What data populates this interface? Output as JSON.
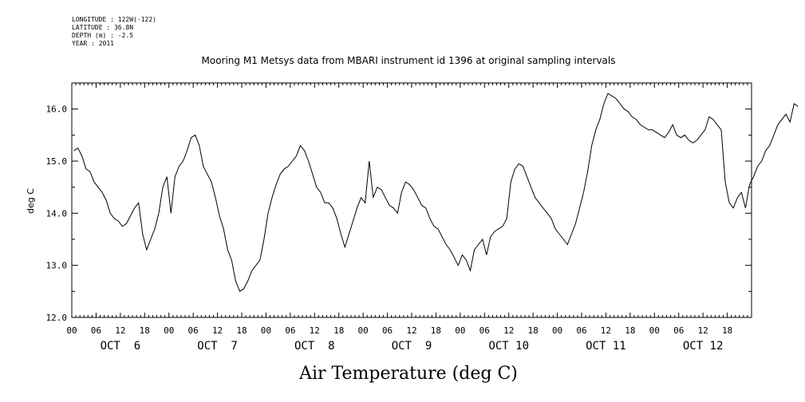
{
  "header": {
    "longitude": "LONGITUDE : 122W(-122)",
    "latitude": "LATITUDE : 36.8N",
    "depth": "DEPTH (m) : -2.5",
    "year": "YEAR : 2011"
  },
  "chart_data": {
    "type": "line",
    "title": "Mooring M1 Metsys data from MBARI instrument id 1396 at original sampling intervals",
    "xlabel": "Air Temperature (deg C)",
    "ylabel": "deg C",
    "ylim": [
      12.0,
      16.5
    ],
    "yticks": [
      12.0,
      13.0,
      14.0,
      15.0,
      16.0
    ],
    "xlim_hours": [
      0,
      168
    ],
    "hour_tick_labels": [
      "00",
      "06",
      "12",
      "18",
      "00",
      "06",
      "12",
      "18",
      "00",
      "06",
      "12",
      "18",
      "00",
      "06",
      "12",
      "18",
      "00",
      "06",
      "12",
      "18",
      "00",
      "06",
      "12",
      "18",
      "00",
      "06",
      "12",
      "18"
    ],
    "day_labels": [
      "OCT  6",
      "OCT  7",
      "OCT  8",
      "OCT  9",
      "OCT 10",
      "OCT 11",
      "OCT 12"
    ],
    "series": [
      {
        "points": [
          [
            0.5,
            15.2
          ],
          [
            1.5,
            15.25
          ],
          [
            2.5,
            15.1
          ],
          [
            3.5,
            14.85
          ],
          [
            4.5,
            14.8
          ],
          [
            5.5,
            14.6
          ],
          [
            6.5,
            14.5
          ],
          [
            7.5,
            14.4
          ],
          [
            8.5,
            14.25
          ],
          [
            9.5,
            14.0
          ],
          [
            10.5,
            13.9
          ],
          [
            11.5,
            13.85
          ],
          [
            12.5,
            13.75
          ],
          [
            13.5,
            13.8
          ],
          [
            14.5,
            13.95
          ],
          [
            15.5,
            14.1
          ],
          [
            16.5,
            14.2
          ],
          [
            17.5,
            13.6
          ],
          [
            18.5,
            13.3
          ],
          [
            19.5,
            13.5
          ],
          [
            20.5,
            13.7
          ],
          [
            21.5,
            14.0
          ],
          [
            22.5,
            14.5
          ],
          [
            23.5,
            14.7
          ],
          [
            24.5,
            14.0
          ],
          [
            25.5,
            14.7
          ],
          [
            26.5,
            14.9
          ],
          [
            27.5,
            15.0
          ],
          [
            28.5,
            15.2
          ],
          [
            29.5,
            15.45
          ],
          [
            30.5,
            15.5
          ],
          [
            31.5,
            15.3
          ],
          [
            32.5,
            14.9
          ],
          [
            33.5,
            14.75
          ],
          [
            34.5,
            14.6
          ],
          [
            35.5,
            14.3
          ],
          [
            36.5,
            13.95
          ],
          [
            37.5,
            13.7
          ],
          [
            38.5,
            13.3
          ],
          [
            39.5,
            13.1
          ],
          [
            40.5,
            12.7
          ],
          [
            41.5,
            12.5
          ],
          [
            42.5,
            12.55
          ],
          [
            43.5,
            12.7
          ],
          [
            44.5,
            12.9
          ],
          [
            45.5,
            13.0
          ],
          [
            46.5,
            13.1
          ],
          [
            47.5,
            13.5
          ],
          [
            48.5,
            14.0
          ],
          [
            49.5,
            14.3
          ],
          [
            50.5,
            14.55
          ],
          [
            51.5,
            14.75
          ],
          [
            52.5,
            14.85
          ],
          [
            53.5,
            14.9
          ],
          [
            54.5,
            15.0
          ],
          [
            55.5,
            15.1
          ],
          [
            56.5,
            15.3
          ],
          [
            57.5,
            15.2
          ],
          [
            58.5,
            15.0
          ],
          [
            59.5,
            14.75
          ],
          [
            60.5,
            14.5
          ],
          [
            61.5,
            14.4
          ],
          [
            62.5,
            14.2
          ],
          [
            63.5,
            14.2
          ],
          [
            64.5,
            14.1
          ],
          [
            65.5,
            13.9
          ],
          [
            66.5,
            13.6
          ],
          [
            67.5,
            13.35
          ],
          [
            68.5,
            13.6
          ],
          [
            69.5,
            13.85
          ],
          [
            70.5,
            14.1
          ],
          [
            71.5,
            14.3
          ],
          [
            72.5,
            14.2
          ],
          [
            73.5,
            15.0
          ],
          [
            74.5,
            14.3
          ],
          [
            75.5,
            14.5
          ],
          [
            76.5,
            14.45
          ],
          [
            77.5,
            14.3
          ],
          [
            78.5,
            14.15
          ],
          [
            79.5,
            14.1
          ],
          [
            80.5,
            14.0
          ],
          [
            81.5,
            14.4
          ],
          [
            82.5,
            14.6
          ],
          [
            83.5,
            14.55
          ],
          [
            84.5,
            14.45
          ],
          [
            85.5,
            14.3
          ],
          [
            86.5,
            14.15
          ],
          [
            87.5,
            14.1
          ],
          [
            88.5,
            13.9
          ],
          [
            89.5,
            13.75
          ],
          [
            90.5,
            13.7
          ],
          [
            91.5,
            13.55
          ],
          [
            92.5,
            13.4
          ],
          [
            93.5,
            13.3
          ],
          [
            94.5,
            13.15
          ],
          [
            95.5,
            13.0
          ],
          [
            96.5,
            13.2
          ],
          [
            97.5,
            13.1
          ],
          [
            98.5,
            12.9
          ],
          [
            99.5,
            13.3
          ],
          [
            100.5,
            13.4
          ],
          [
            101.5,
            13.5
          ],
          [
            102.5,
            13.2
          ],
          [
            103.5,
            13.55
          ],
          [
            104.5,
            13.65
          ],
          [
            105.5,
            13.7
          ],
          [
            106.5,
            13.75
          ],
          [
            107.5,
            13.9
          ],
          [
            108.5,
            14.6
          ],
          [
            109.5,
            14.85
          ],
          [
            110.5,
            14.95
          ],
          [
            111.5,
            14.9
          ],
          [
            112.5,
            14.7
          ],
          [
            113.5,
            14.5
          ],
          [
            114.5,
            14.3
          ],
          [
            115.5,
            14.2
          ],
          [
            116.5,
            14.1
          ],
          [
            117.5,
            14.0
          ],
          [
            118.5,
            13.9
          ],
          [
            119.5,
            13.7
          ],
          [
            120.5,
            13.6
          ],
          [
            121.5,
            13.5
          ],
          [
            122.5,
            13.4
          ],
          [
            123.5,
            13.6
          ],
          [
            124.5,
            13.8
          ],
          [
            125.5,
            14.1
          ],
          [
            126.5,
            14.4
          ],
          [
            127.5,
            14.8
          ],
          [
            128.5,
            15.3
          ],
          [
            129.5,
            15.6
          ],
          [
            130.5,
            15.8
          ],
          [
            131.5,
            16.1
          ],
          [
            132.5,
            16.3
          ],
          [
            133.5,
            16.25
          ],
          [
            134.5,
            16.2
          ],
          [
            135.5,
            16.1
          ],
          [
            136.5,
            16.0
          ],
          [
            137.5,
            15.95
          ],
          [
            138.5,
            15.85
          ],
          [
            139.5,
            15.8
          ],
          [
            140.5,
            15.7
          ],
          [
            141.5,
            15.65
          ],
          [
            142.5,
            15.6
          ],
          [
            143.5,
            15.6
          ],
          [
            144.5,
            15.55
          ],
          [
            145.5,
            15.5
          ],
          [
            146.5,
            15.45
          ],
          [
            147.5,
            15.55
          ],
          [
            148.5,
            15.7
          ],
          [
            149.5,
            15.5
          ],
          [
            150.5,
            15.45
          ],
          [
            151.5,
            15.5
          ],
          [
            152.5,
            15.4
          ],
          [
            153.5,
            15.35
          ],
          [
            154.5,
            15.4
          ],
          [
            155.5,
            15.5
          ],
          [
            156.5,
            15.6
          ],
          [
            157.5,
            15.85
          ],
          [
            158.5,
            15.8
          ],
          [
            159.5,
            15.7
          ],
          [
            160.5,
            15.6
          ],
          [
            161.5,
            14.6
          ],
          [
            162.5,
            14.2
          ],
          [
            163.5,
            14.1
          ],
          [
            164.5,
            14.3
          ],
          [
            165.5,
            14.4
          ],
          [
            166.5,
            14.1
          ],
          [
            167.5,
            14.55
          ],
          [
            168.5,
            14.7
          ],
          [
            169.5,
            14.9
          ],
          [
            170.5,
            15.0
          ],
          [
            171.5,
            15.2
          ],
          [
            172.5,
            15.3
          ],
          [
            173.5,
            15.5
          ],
          [
            174.5,
            15.7
          ],
          [
            175.5,
            15.8
          ],
          [
            176.5,
            15.9
          ],
          [
            177.5,
            15.75
          ],
          [
            178.5,
            16.1
          ],
          [
            179.5,
            16.05
          ]
        ]
      }
    ]
  }
}
